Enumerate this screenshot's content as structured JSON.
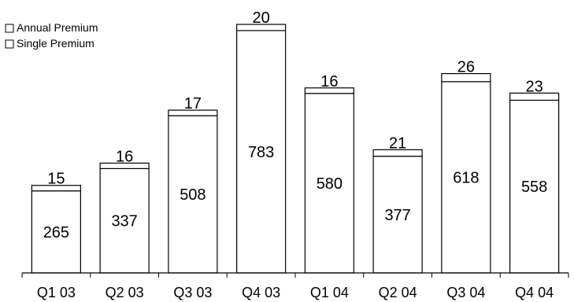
{
  "chart_data": {
    "type": "bar",
    "stacked": true,
    "categories": [
      "Q1 03",
      "Q2 03",
      "Q3 03",
      "Q4 03",
      "Q1 04",
      "Q2 04",
      "Q3 04",
      "Q4 04"
    ],
    "series": [
      {
        "name": "Single Premium",
        "values": [
          265,
          337,
          508,
          783,
          580,
          377,
          618,
          558
        ],
        "color": "#ffffff"
      },
      {
        "name": "Annual Premium",
        "values": [
          15,
          16,
          17,
          20,
          16,
          21,
          26,
          23
        ],
        "color": "#ffffff"
      }
    ],
    "legend": {
      "position": "top-left",
      "entries": [
        "Annual Premium",
        "Single Premium"
      ]
    },
    "title": "",
    "xlabel": "",
    "ylabel": "",
    "grid": false,
    "value_labels": true
  }
}
